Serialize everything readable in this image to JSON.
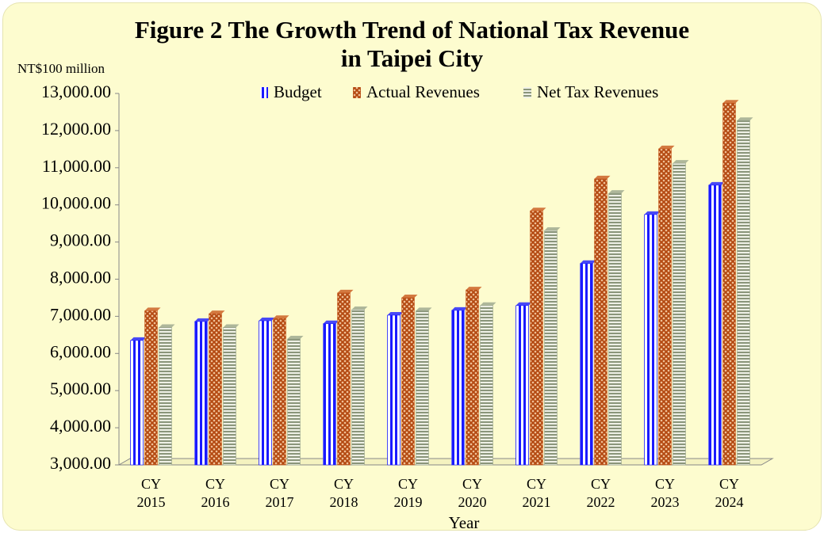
{
  "chart_data": {
    "type": "bar",
    "title": "Figure 2 The Growth Trend of National Tax Revenue\nin Taipei City",
    "y_axis_label": "NT$100 million",
    "x_axis_label": "Year",
    "categories": [
      "CY\n2015",
      "CY\n2016",
      "CY\n2017",
      "CY\n2018",
      "CY\n2019",
      "CY\n2020",
      "CY\n2021",
      "CY\n2022",
      "CY\n2023",
      "CY\n2024"
    ],
    "series": [
      {
        "name": "Budget",
        "color": "#1a1aff",
        "values": [
          6350,
          6860,
          6880,
          6800,
          7030,
          7160,
          7290,
          8420,
          9740,
          10530
        ]
      },
      {
        "name": "Actual Revenues",
        "color": "#c8581c",
        "values": [
          7150,
          7070,
          6940,
          7630,
          7500,
          7710,
          9840,
          10700,
          11510,
          12740
        ]
      },
      {
        "name": "Net Tax Revenues",
        "color": "#9aa58c",
        "values": [
          6700,
          6700,
          6390,
          7180,
          7150,
          7290,
          9310,
          10310,
          11120,
          12270
        ]
      }
    ],
    "ylim": [
      3000,
      13000
    ],
    "yticks": [
      {
        "value": 3000,
        "label": "3,000.00"
      },
      {
        "value": 4000,
        "label": "4,000.00"
      },
      {
        "value": 5000,
        "label": "5,000.00"
      },
      {
        "value": 6000,
        "label": "6,000.00"
      },
      {
        "value": 7000,
        "label": "7,000.00"
      },
      {
        "value": 8000,
        "label": "8,000.00"
      },
      {
        "value": 9000,
        "label": "9,000.00"
      },
      {
        "value": 10000,
        "label": "10,000.00"
      },
      {
        "value": 11000,
        "label": "11,000.00"
      },
      {
        "value": 12000,
        "label": "12,000.00"
      },
      {
        "value": 13000,
        "label": "13,000.00"
      }
    ],
    "grid": false
  }
}
